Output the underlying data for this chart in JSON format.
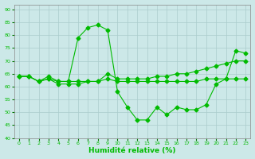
{
  "xlabel": "Humidité relative (%)",
  "background_color": "#cce8e8",
  "grid_color": "#aacccc",
  "line_color": "#00bb00",
  "ylim": [
    40,
    92
  ],
  "yticks": [
    40,
    45,
    50,
    55,
    60,
    65,
    70,
    75,
    80,
    85,
    90
  ],
  "xlim": [
    -0.5,
    23.5
  ],
  "xticks": [
    0,
    1,
    2,
    3,
    4,
    5,
    6,
    7,
    8,
    9,
    10,
    11,
    12,
    13,
    14,
    15,
    16,
    17,
    18,
    19,
    20,
    21,
    22,
    23
  ],
  "series1": [
    64,
    64,
    62,
    64,
    62,
    62,
    79,
    83,
    84,
    82,
    58,
    52,
    47,
    47,
    52,
    49,
    52,
    51,
    51,
    53,
    61,
    63,
    74,
    73
  ],
  "series2": [
    64,
    64,
    62,
    63,
    62,
    62,
    62,
    62,
    62,
    63,
    62,
    62,
    62,
    62,
    62,
    62,
    62,
    62,
    62,
    63,
    63,
    63,
    63,
    63
  ],
  "series3": [
    64,
    64,
    62,
    63,
    61,
    61,
    61,
    62,
    62,
    65,
    63,
    63,
    63,
    63,
    64,
    64,
    65,
    65,
    66,
    67,
    68,
    69,
    70,
    70
  ]
}
